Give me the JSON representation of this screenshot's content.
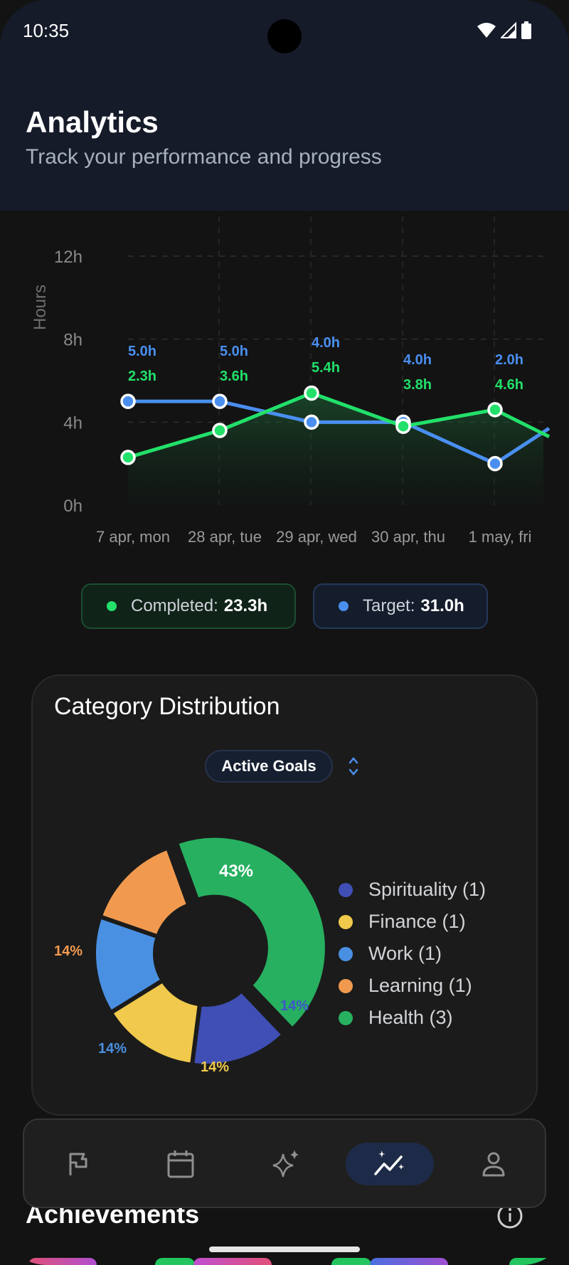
{
  "status_bar": {
    "time": "10:35"
  },
  "header": {
    "title": "Analytics",
    "subtitle": "Track your performance and progress"
  },
  "colors": {
    "completed": "#22e06a",
    "target": "#4a8ff0",
    "header_bg": "#151b29",
    "background": "#131313"
  },
  "chart_data": {
    "type": "line",
    "ylabel": "Hours",
    "y_ticks": [
      "0h",
      "4h",
      "8h",
      "12h"
    ],
    "ylim": [
      0,
      12
    ],
    "categories": [
      "7 apr, mon",
      "28 apr, tue",
      "29 apr, wed",
      "30 apr, thu",
      "1 may, fri"
    ],
    "series": [
      {
        "name": "Completed",
        "color": "#22e06a",
        "values": [
          2.3,
          3.6,
          5.4,
          3.8,
          4.6
        ],
        "labels": [
          "2.3h",
          "3.6h",
          "5.4h",
          "3.8h",
          "4.6h"
        ]
      },
      {
        "name": "Target",
        "color": "#4a8ff0",
        "values": [
          5.0,
          5.0,
          4.0,
          4.0,
          2.0
        ],
        "labels": [
          "5.0h",
          "5.0h",
          "4.0h",
          "4.0h",
          "2.0h"
        ]
      }
    ],
    "grid": true
  },
  "summary": {
    "completed_label": "Completed:",
    "completed_value": "23.3h",
    "target_label": "Target:",
    "target_value": "31.0h"
  },
  "category_card": {
    "title": "Category Distribution",
    "filter": "Active Goals",
    "pie": {
      "type": "pie",
      "slices": [
        {
          "label": "Health (3)",
          "percent": 43,
          "text": "43%",
          "color": "#27b060"
        },
        {
          "label": "Spirituality (1)",
          "percent": 14,
          "text": "14%",
          "color": "#3f4fb5"
        },
        {
          "label": "Finance (1)",
          "percent": 14,
          "text": "14%",
          "color": "#f1c94c"
        },
        {
          "label": "Work (1)",
          "percent": 14,
          "text": "14%",
          "color": "#4a90e2"
        },
        {
          "label": "Learning (1)",
          "percent": 14,
          "text": "14%",
          "color": "#f19a4f"
        }
      ]
    },
    "legend": [
      {
        "label": "Spirituality (1)",
        "color": "#3f4fb5"
      },
      {
        "label": "Finance (1)",
        "color": "#f1c94c"
      },
      {
        "label": "Work (1)",
        "color": "#4a90e2"
      },
      {
        "label": "Learning (1)",
        "color": "#f19a4f"
      },
      {
        "label": "Health (3)",
        "color": "#27b060"
      }
    ]
  },
  "nav": {
    "items": [
      {
        "icon": "flag-icon"
      },
      {
        "icon": "calendar-icon"
      },
      {
        "icon": "sparkles-icon"
      },
      {
        "icon": "analytics-icon",
        "active": true
      },
      {
        "icon": "profile-icon"
      }
    ]
  },
  "achievements": {
    "title": "Achievements"
  }
}
